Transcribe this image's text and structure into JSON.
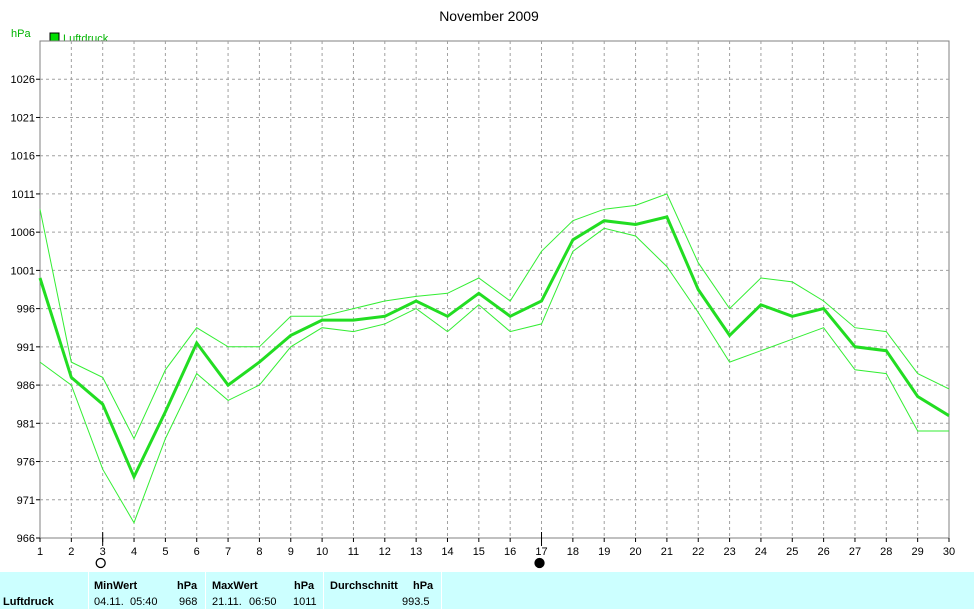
{
  "chart_data": {
    "type": "line",
    "title": "November 2009",
    "ylabel": "hPa",
    "legend": {
      "label": "Luftdruck",
      "color": "#00c800",
      "placement": "top-left"
    },
    "x": [
      1,
      2,
      3,
      4,
      5,
      6,
      7,
      8,
      9,
      10,
      11,
      12,
      13,
      14,
      15,
      16,
      17,
      18,
      19,
      20,
      21,
      22,
      23,
      24,
      25,
      26,
      27,
      28,
      29,
      30
    ],
    "yticks": [
      966,
      971,
      976,
      981,
      986,
      991,
      996,
      1001,
      1006,
      1011,
      1016,
      1021,
      1026
    ],
    "ylim": [
      966,
      1031
    ],
    "xlim": [
      1,
      30
    ],
    "grid": true,
    "series": [
      {
        "role": "max",
        "values": [
          1009,
          989,
          987,
          979,
          988,
          993.5,
          991,
          991,
          995,
          995,
          996,
          997,
          997.6,
          998,
          1000,
          997,
          1003.5,
          1007.5,
          1009,
          1009.5,
          1011,
          1002,
          996,
          1000,
          999.5,
          997,
          993.5,
          993,
          987.5,
          985.5
        ]
      },
      {
        "role": "avg",
        "values": [
          1000,
          987,
          983.5,
          974,
          982.5,
          991.5,
          986,
          989,
          992.5,
          994.5,
          994.5,
          995,
          997,
          995,
          998,
          995,
          997,
          1005,
          1007.5,
          1007,
          1008,
          998.5,
          992.5,
          996.5,
          995,
          996,
          991,
          990.5,
          984.5,
          982
        ]
      },
      {
        "role": "min",
        "values": [
          989,
          986,
          975,
          968,
          979,
          987.5,
          984,
          986,
          991,
          993.5,
          993,
          994,
          996,
          993,
          996.5,
          993,
          994,
          1003.5,
          1006.5,
          1005.5,
          1001.5,
          995.5,
          989,
          990.5,
          992,
          993.5,
          988,
          987.5,
          980,
          980
        ]
      }
    ],
    "markers": {
      "day_3": "new-moon-icon",
      "day_17": "full-moon-icon"
    }
  },
  "stats": {
    "row_label": "Luftdruck",
    "min": {
      "header": "MinWert",
      "unit": "hPa",
      "date": "04.11.",
      "time": "05:40",
      "value": "968"
    },
    "max": {
      "header": "MaxWert",
      "unit": "hPa",
      "date": "21.11.",
      "time": "06:50",
      "value": "1011"
    },
    "avg": {
      "header": "Durchschnitt",
      "unit": "hPa",
      "value": "993.5"
    }
  }
}
